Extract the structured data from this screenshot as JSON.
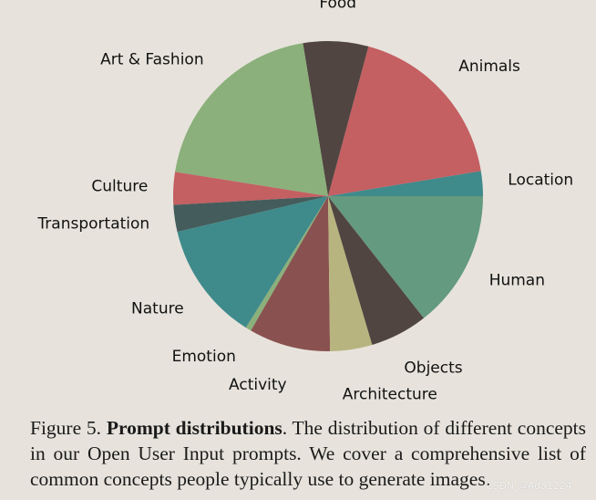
{
  "chart_data": {
    "type": "pie",
    "title": "",
    "start": "east",
    "direction": "counterclockwise",
    "slices": [
      {
        "label": "Location",
        "value": 2.6,
        "color": "#3f8a8b"
      },
      {
        "label": "Animals",
        "value": 18.2,
        "color": "#c45f62"
      },
      {
        "label": "Food",
        "value": 6.8,
        "color": "#514541"
      },
      {
        "label": "Art & Fashion",
        "value": 19.9,
        "color": "#8bb07b"
      },
      {
        "label": "Culture",
        "value": 3.4,
        "color": "#c45f62"
      },
      {
        "label": "Transportation",
        "value": 2.8,
        "color": "#445c5b"
      },
      {
        "label": "Nature",
        "value": 12.4,
        "color": "#3f8a8b"
      },
      {
        "label": "Emotion",
        "value": 0.6,
        "color": "#8bb07b"
      },
      {
        "label": "Activity",
        "value": 8.5,
        "color": "#89514f"
      },
      {
        "label": "Architecture",
        "value": 4.4,
        "color": "#b8b47f"
      },
      {
        "label": "Objects",
        "value": 6.0,
        "color": "#514541"
      },
      {
        "label": "Human",
        "value": 14.4,
        "color": "#649a7f"
      }
    ]
  },
  "caption": {
    "figure_label": "Figure 5.",
    "bold_title": "Prompt distributions",
    "text": ". The distribution of different concepts in our Open User Input prompts. We cover a comprehensive list of common concepts people typically use to generate images."
  },
  "watermark": "CSDN @Ada1224"
}
